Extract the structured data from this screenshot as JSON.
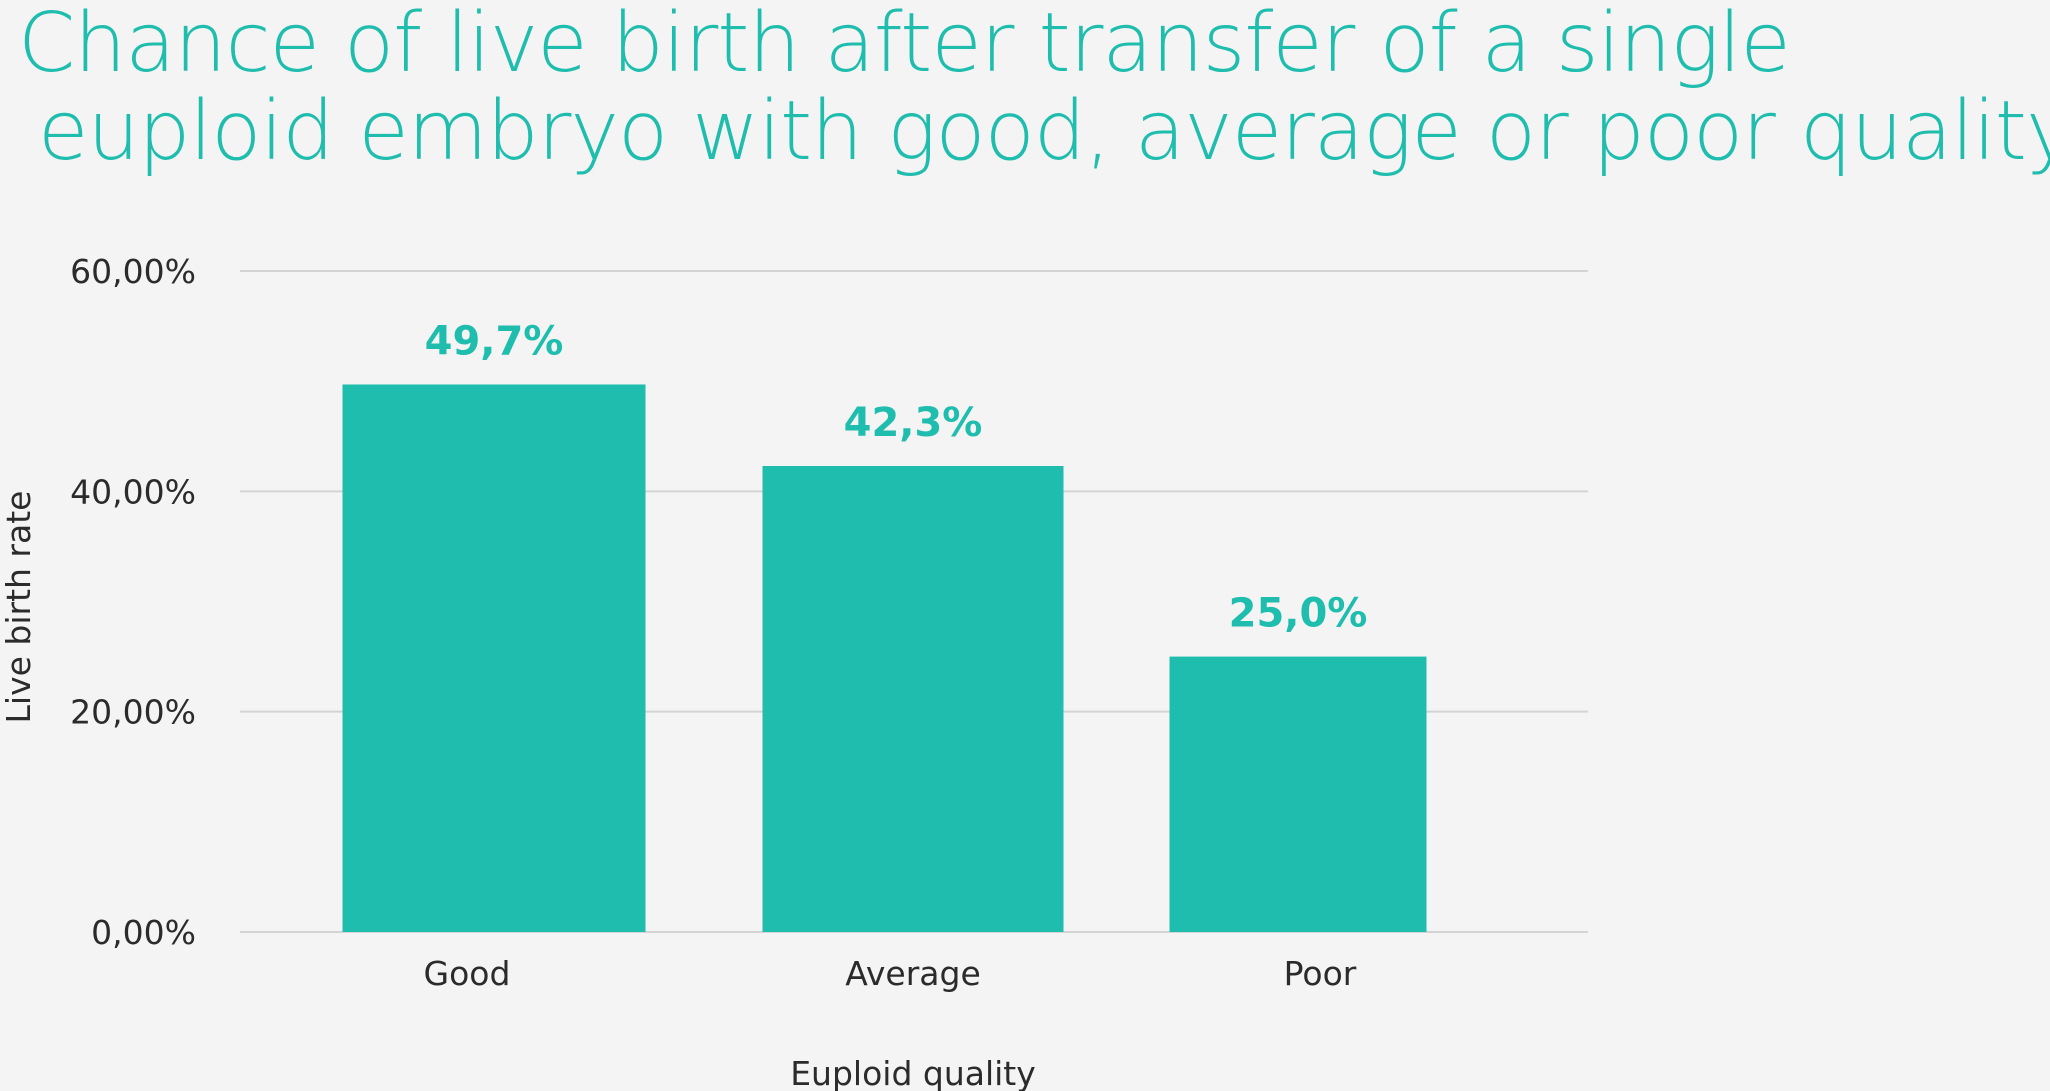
{
  "chart_data": {
    "type": "bar",
    "title_lines": [
      "Chance of live birth after transfer of a single",
      "euploid embryo with good, average or poor quality"
    ],
    "categories": [
      "Good",
      "Average",
      "Poor"
    ],
    "values": [
      49.7,
      42.3,
      25.0
    ],
    "data_labels": [
      "49,7%",
      "42,3%",
      "25,0%"
    ],
    "xlabel": "Euploid quality",
    "ylabel": "Live birth rate",
    "ylim": [
      0,
      60
    ],
    "yticks": [
      0,
      20,
      40,
      60
    ],
    "ytick_labels": [
      "0,00%",
      "20,00%",
      "40,00%",
      "60,00%"
    ],
    "grid": true,
    "legend": false,
    "colors": {
      "bar": "#1fbdad",
      "title": "#1fbdad",
      "data_label": "#1fbdad",
      "grid": "#d4d4d4",
      "text": "#2b2b2b",
      "background": "#f4f4f4"
    }
  }
}
